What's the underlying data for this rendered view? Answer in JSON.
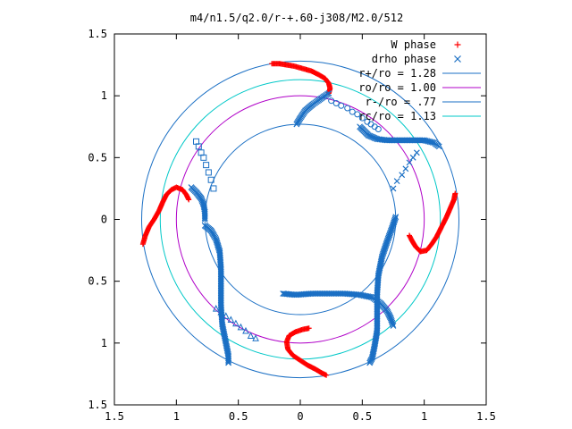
{
  "chart_data": {
    "type": "scatter",
    "title": "m4/n1.5/q2.0/r-+.60-j308/M2.0/512",
    "xlabel": "",
    "ylabel": "",
    "xlim": [
      -1.5,
      1.5
    ],
    "ylim": [
      -1.5,
      1.5
    ],
    "x_tick_values": [
      -1.5,
      -1,
      -0.5,
      0,
      0.5,
      1,
      1.5
    ],
    "x_tick_labels": [
      "1.5",
      "1",
      "0.5",
      "0",
      "0.5",
      "1",
      "1.5"
    ],
    "y_tick_values": [
      1.5,
      1,
      0.5,
      0,
      -0.5,
      -1,
      -1.5
    ],
    "y_tick_labels": [
      "1.5",
      "1",
      "0.5",
      "0",
      "0.5",
      "1",
      "1.5"
    ],
    "grid": false,
    "legend_position": "top-right",
    "circles": [
      {
        "name": "r+/ro = 1.28",
        "radius": 1.28,
        "color": "#1a6fc4"
      },
      {
        "name": "ro/ro = 1.00",
        "radius": 1.0,
        "color": "#b000c8"
      },
      {
        "name": "r-/ro = .77",
        "radius": 0.77,
        "color": "#1a6fc4"
      },
      {
        "name": "rc/ro = 1.13",
        "radius": 1.13,
        "color": "#00c8c8"
      }
    ],
    "series": [
      {
        "name": "W phase",
        "marker": "+",
        "color": "#ff0000",
        "arms": [
          [
            [
              0.23,
              1.02
            ],
            [
              0.24,
              1.06
            ],
            [
              0.23,
              1.1
            ],
            [
              0.2,
              1.14
            ],
            [
              0.15,
              1.17
            ],
            [
              0.09,
              1.2
            ],
            [
              0.02,
              1.22
            ],
            [
              -0.05,
              1.24
            ],
            [
              -0.11,
              1.25
            ],
            [
              -0.17,
              1.26
            ],
            [
              -0.23,
              1.26
            ]
          ],
          [
            [
              -0.9,
              0.16
            ],
            [
              -0.92,
              0.2
            ],
            [
              -0.95,
              0.24
            ],
            [
              -1.0,
              0.26
            ],
            [
              -1.04,
              0.24
            ],
            [
              -1.08,
              0.2
            ],
            [
              -1.11,
              0.14
            ],
            [
              -1.14,
              0.07
            ],
            [
              -1.18,
              0.0
            ],
            [
              -1.22,
              -0.06
            ],
            [
              -1.25,
              -0.13
            ],
            [
              -1.27,
              -0.2
            ]
          ],
          [
            [
              0.07,
              -0.88
            ],
            [
              0.02,
              -0.89
            ],
            [
              -0.04,
              -0.91
            ],
            [
              -0.09,
              -0.94
            ],
            [
              -0.11,
              -0.99
            ],
            [
              -0.1,
              -1.05
            ],
            [
              -0.06,
              -1.1
            ],
            [
              0.0,
              -1.14
            ],
            [
              0.06,
              -1.18
            ],
            [
              0.12,
              -1.21
            ],
            [
              0.17,
              -1.24
            ],
            [
              0.21,
              -1.26
            ]
          ],
          [
            [
              0.88,
              -0.13
            ],
            [
              0.9,
              -0.17
            ],
            [
              0.93,
              -0.22
            ],
            [
              0.97,
              -0.26
            ],
            [
              1.02,
              -0.25
            ],
            [
              1.06,
              -0.2
            ],
            [
              1.1,
              -0.14
            ],
            [
              1.14,
              -0.06
            ],
            [
              1.18,
              0.02
            ],
            [
              1.21,
              0.09
            ],
            [
              1.24,
              0.16
            ],
            [
              1.25,
              0.21
            ]
          ]
        ]
      },
      {
        "name": "drho phase",
        "marker": "x",
        "color": "#1a6fc4",
        "arms": [
          [
            [
              0.23,
              1.02
            ],
            [
              0.17,
              0.98
            ],
            [
              0.1,
              0.93
            ],
            [
              0.04,
              0.88
            ],
            [
              0.0,
              0.82
            ],
            [
              -0.03,
              0.77
            ]
          ],
          [
            [
              0.48,
              0.75
            ],
            [
              0.55,
              0.68
            ],
            [
              0.62,
              0.65
            ],
            [
              0.7,
              0.64
            ],
            [
              0.8,
              0.64
            ],
            [
              0.9,
              0.64
            ],
            [
              1.0,
              0.64
            ],
            [
              1.08,
              0.62
            ],
            [
              1.12,
              0.59
            ]
          ],
          [
            [
              -0.88,
              0.26
            ],
            [
              -0.84,
              0.22
            ],
            [
              -0.8,
              0.17
            ],
            [
              -0.78,
              0.12
            ],
            [
              -0.77,
              0.06
            ],
            [
              -0.77,
              0.0
            ]
          ],
          [
            [
              -0.77,
              -0.05
            ],
            [
              -0.72,
              -0.09
            ],
            [
              -0.68,
              -0.16
            ],
            [
              -0.65,
              -0.26
            ],
            [
              -0.64,
              -0.4
            ],
            [
              -0.64,
              -0.55
            ],
            [
              -0.64,
              -0.7
            ],
            [
              -0.63,
              -0.85
            ],
            [
              -0.6,
              -1.0
            ],
            [
              -0.58,
              -1.1
            ],
            [
              -0.58,
              -1.16
            ]
          ],
          [
            [
              0.75,
              -0.86
            ],
            [
              0.73,
              -0.8
            ],
            [
              0.7,
              -0.74
            ],
            [
              0.65,
              -0.68
            ],
            [
              0.58,
              -0.63
            ],
            [
              0.48,
              -0.61
            ],
            [
              0.36,
              -0.6
            ],
            [
              0.24,
              -0.6
            ],
            [
              0.1,
              -0.6
            ],
            [
              -0.04,
              -0.61
            ],
            [
              -0.14,
              -0.6
            ]
          ],
          [
            [
              0.77,
              0.02
            ],
            [
              0.74,
              -0.07
            ],
            [
              0.7,
              -0.18
            ],
            [
              0.66,
              -0.3
            ],
            [
              0.63,
              -0.45
            ],
            [
              0.62,
              -0.6
            ],
            [
              0.62,
              -0.75
            ],
            [
              0.62,
              -0.9
            ],
            [
              0.6,
              -1.02
            ],
            [
              0.58,
              -1.12
            ],
            [
              0.56,
              -1.16
            ]
          ]
        ]
      }
    ],
    "sparse_markers": [
      {
        "points": [
          [
            0.25,
            0.96
          ],
          [
            0.29,
            0.94
          ],
          [
            0.33,
            0.92
          ],
          [
            0.38,
            0.9
          ],
          [
            0.42,
            0.87
          ],
          [
            0.46,
            0.85
          ],
          [
            0.5,
            0.82
          ],
          [
            0.54,
            0.79
          ],
          [
            0.57,
            0.77
          ],
          [
            0.6,
            0.75
          ],
          [
            0.63,
            0.73
          ]
        ],
        "marker": "circle",
        "color": "#1a6fc4"
      },
      {
        "points": [
          [
            -0.7,
            0.25
          ],
          [
            -0.72,
            0.32
          ],
          [
            -0.74,
            0.38
          ],
          [
            -0.76,
            0.44
          ],
          [
            -0.78,
            0.5
          ],
          [
            -0.8,
            0.54
          ],
          [
            -0.82,
            0.59
          ],
          [
            -0.84,
            0.63
          ]
        ],
        "marker": "square",
        "color": "#1a6fc4"
      },
      {
        "points": [
          [
            -0.36,
            -0.96
          ],
          [
            -0.4,
            -0.94
          ],
          [
            -0.44,
            -0.9
          ],
          [
            -0.48,
            -0.87
          ],
          [
            -0.52,
            -0.84
          ],
          [
            -0.56,
            -0.81
          ],
          [
            -0.6,
            -0.78
          ],
          [
            -0.64,
            -0.75
          ],
          [
            -0.68,
            -0.72
          ]
        ],
        "marker": "triangle",
        "color": "#1a6fc4"
      },
      {
        "points": [
          [
            0.75,
            0.25
          ],
          [
            0.78,
            0.31
          ],
          [
            0.82,
            0.36
          ],
          [
            0.85,
            0.41
          ],
          [
            0.88,
            0.46
          ],
          [
            0.91,
            0.5
          ],
          [
            0.94,
            0.54
          ]
        ],
        "marker": "x",
        "color": "#1a6fc4"
      }
    ],
    "legend": [
      {
        "label": "W phase",
        "kind": "marker",
        "marker": "+",
        "color": "#ff0000"
      },
      {
        "label": "drho phase",
        "kind": "marker",
        "marker": "x",
        "color": "#1a6fc4"
      },
      {
        "label": "r+/ro = 1.28",
        "kind": "line",
        "color": "#1a6fc4"
      },
      {
        "label": "ro/ro = 1.00",
        "kind": "line",
        "color": "#b000c8"
      },
      {
        "label": "r-/ro = .77",
        "kind": "line",
        "color": "#1a6fc4"
      },
      {
        "label": "rc/ro = 1.13",
        "kind": "line",
        "color": "#00c8c8"
      }
    ]
  }
}
